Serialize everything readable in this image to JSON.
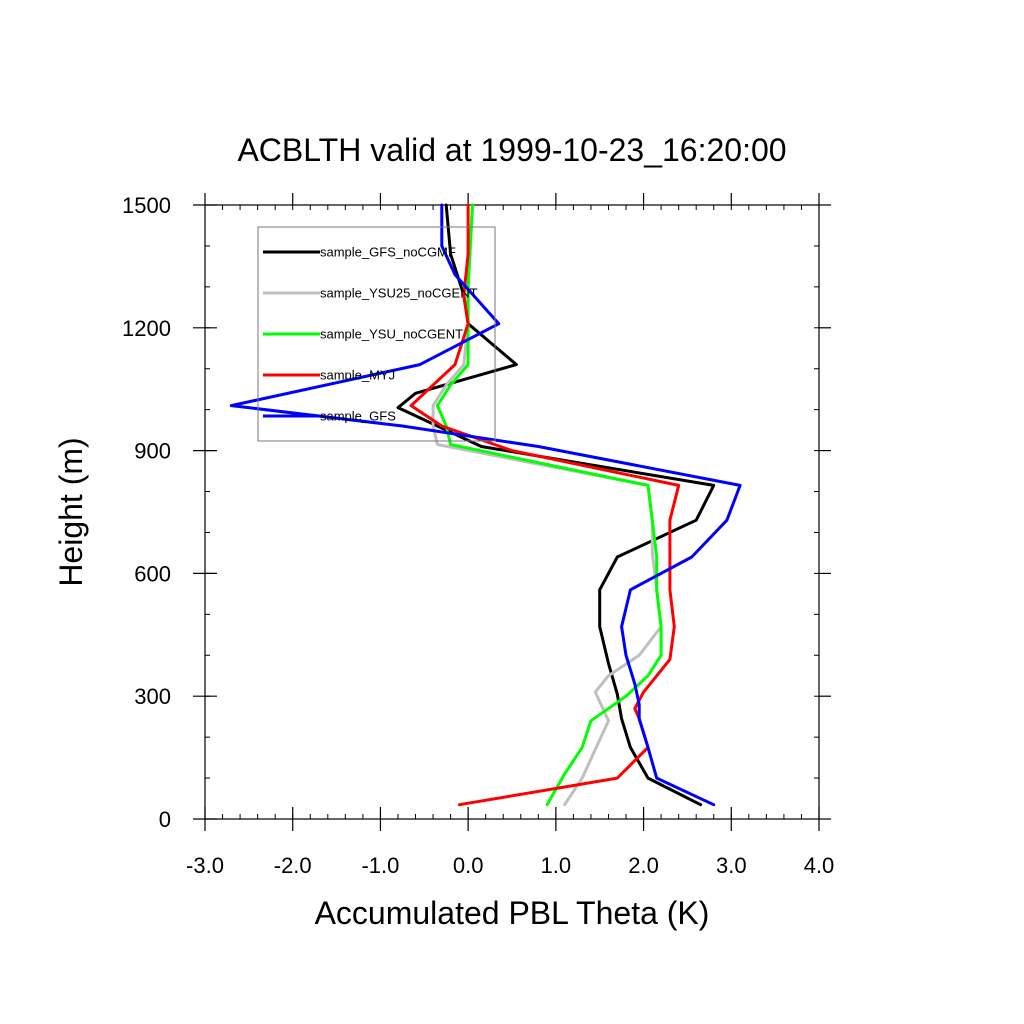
{
  "chart_data": {
    "type": "line",
    "title": "ACBLTH valid at 1999-10-23_16:20:00",
    "xlabel": "Accumulated PBL Theta (K)",
    "ylabel": "Height (m)",
    "xlim": [
      -3.0,
      4.0
    ],
    "ylim": [
      0,
      1500
    ],
    "xticks": [
      "-3.0",
      "-2.0",
      "-1.0",
      "0.0",
      "1.0",
      "2.0",
      "3.0",
      "4.0"
    ],
    "yticks": [
      "0",
      "300",
      "600",
      "900",
      "1200",
      "1500"
    ],
    "grid": false,
    "legend_position": "top-left",
    "series": [
      {
        "name": "sample_GFS_noCGMF",
        "color": "#000000",
        "points": [
          [
            2.65,
            35
          ],
          [
            2.05,
            100
          ],
          [
            1.85,
            175
          ],
          [
            1.75,
            245
          ],
          [
            1.7,
            305
          ],
          [
            1.6,
            380
          ],
          [
            1.5,
            470
          ],
          [
            1.5,
            560
          ],
          [
            1.7,
            640
          ],
          [
            2.6,
            730
          ],
          [
            2.8,
            815
          ],
          [
            0.15,
            910
          ],
          [
            -0.35,
            960
          ],
          [
            -0.8,
            1005
          ],
          [
            -0.6,
            1040
          ],
          [
            0.55,
            1110
          ],
          [
            0,
            1210
          ],
          [
            -0.05,
            1280
          ],
          [
            -0.2,
            1380
          ],
          [
            -0.25,
            1500
          ]
        ]
      },
      {
        "name": "sample_YSU25_noCGENT",
        "color": "#bfbfbf",
        "points": [
          [
            1.1,
            35
          ],
          [
            1.3,
            100
          ],
          [
            1.45,
            170
          ],
          [
            1.6,
            240
          ],
          [
            1.45,
            310
          ],
          [
            1.6,
            350
          ],
          [
            1.95,
            400
          ],
          [
            2.2,
            470
          ],
          [
            2.15,
            560
          ],
          [
            2.1,
            650
          ],
          [
            2.1,
            730
          ],
          [
            2.05,
            815
          ],
          [
            -0.35,
            915
          ],
          [
            -0.4,
            960
          ],
          [
            -0.4,
            1010
          ],
          [
            -0.25,
            1060
          ],
          [
            -0.05,
            1110
          ],
          [
            0,
            1210
          ],
          [
            0,
            1300
          ],
          [
            0.05,
            1500
          ]
        ]
      },
      {
        "name": "sample_YSU_noCGENT",
        "color": "#00ff00",
        "points": [
          [
            0.9,
            35
          ],
          [
            1.1,
            110
          ],
          [
            1.3,
            175
          ],
          [
            1.4,
            240
          ],
          [
            1.8,
            300
          ],
          [
            2.05,
            350
          ],
          [
            2.2,
            400
          ],
          [
            2.2,
            470
          ],
          [
            2.15,
            560
          ],
          [
            2.15,
            640
          ],
          [
            2.1,
            730
          ],
          [
            2.05,
            815
          ],
          [
            -0.2,
            915
          ],
          [
            -0.25,
            960
          ],
          [
            -0.35,
            1010
          ],
          [
            -0.2,
            1060
          ],
          [
            0,
            1110
          ],
          [
            0,
            1210
          ],
          [
            0,
            1300
          ],
          [
            0.05,
            1500
          ]
        ]
      },
      {
        "name": "sample_MYJ",
        "color": "#ff0000",
        "points": [
          [
            -0.1,
            35
          ],
          [
            1.7,
            100
          ],
          [
            2.05,
            175
          ],
          [
            1.95,
            245
          ],
          [
            1.9,
            270
          ],
          [
            2.0,
            310
          ],
          [
            2.3,
            390
          ],
          [
            2.35,
            470
          ],
          [
            2.3,
            560
          ],
          [
            2.3,
            640
          ],
          [
            2.3,
            730
          ],
          [
            2.4,
            815
          ],
          [
            0.5,
            900
          ],
          [
            -0.3,
            960
          ],
          [
            -0.65,
            1010
          ],
          [
            -0.15,
            1110
          ],
          [
            0,
            1210
          ],
          [
            -0.05,
            1280
          ],
          [
            0,
            1380
          ],
          [
            0,
            1500
          ]
        ]
      },
      {
        "name": "sample_GFS",
        "color": "#0000ff",
        "points": [
          [
            2.8,
            35
          ],
          [
            2.15,
            100
          ],
          [
            2.05,
            175
          ],
          [
            1.95,
            245
          ],
          [
            1.95,
            280
          ],
          [
            1.9,
            330
          ],
          [
            1.8,
            400
          ],
          [
            1.75,
            470
          ],
          [
            1.85,
            560
          ],
          [
            2.55,
            640
          ],
          [
            2.95,
            730
          ],
          [
            3.1,
            815
          ],
          [
            0.8,
            910
          ],
          [
            -0.75,
            960
          ],
          [
            -2.7,
            1010
          ],
          [
            -0.55,
            1110
          ],
          [
            0.35,
            1210
          ],
          [
            -0.15,
            1330
          ],
          [
            -0.3,
            1400
          ],
          [
            -0.3,
            1500
          ]
        ]
      }
    ]
  }
}
